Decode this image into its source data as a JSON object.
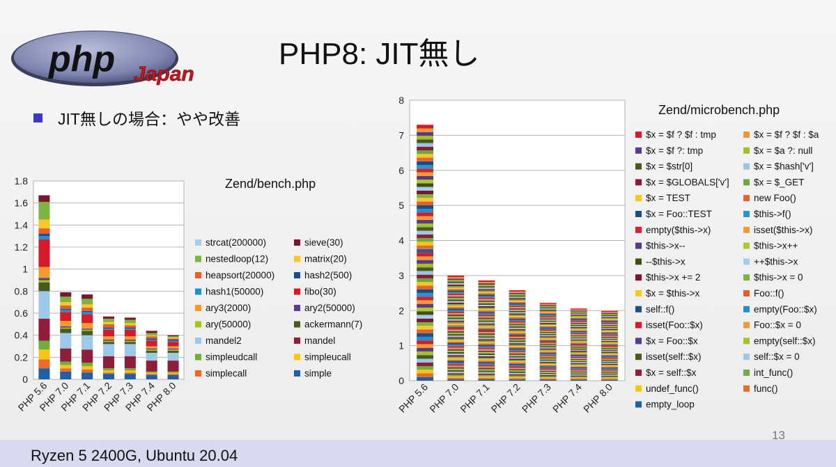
{
  "logo": {
    "text": "php",
    "subtext": "Japan"
  },
  "slide": {
    "title": "PHP8:  JIT無し",
    "bullet": "JIT無しの場合：やや改善",
    "footer": "Ryzen 5 2400G, Ubuntu 20.04",
    "page_number": "13"
  },
  "colors": {
    "bullet": "#3c3bbf",
    "footer_band": "#d9d9ef",
    "logo_oval": "#8a8fb5",
    "logo_red": "#c8141c"
  },
  "chart_data": [
    {
      "type": "bar",
      "stacked": true,
      "title": "Zend/bench.php",
      "categories": [
        "PHP 5.6",
        "PHP 7.0",
        "PHP 7.1",
        "PHP 7.2",
        "PHP 7.3",
        "PHP 7.4",
        "PHP 8.0"
      ],
      "totals": [
        1.67,
        0.78,
        0.73,
        0.57,
        0.55,
        0.45,
        0.41
      ],
      "ylim": [
        0,
        1.8
      ],
      "yticks": [
        "0",
        "0.2",
        "0.4",
        "0.6",
        "0.8",
        "1",
        "1.2",
        "1.4",
        "1.6",
        "1.8"
      ],
      "grid": true,
      "legend_position": "right",
      "series": [
        {
          "name": "simple",
          "color": "#1f5fa8",
          "values": [
            0.1,
            0.07,
            0.06,
            0.05,
            0.05,
            0.04,
            0.04
          ]
        },
        {
          "name": "simplecall",
          "color": "#ef6a25",
          "values": [
            0.08,
            0.03,
            0.03,
            0.01,
            0.01,
            0.01,
            0.01
          ]
        },
        {
          "name": "simpleucall",
          "color": "#f4c51a",
          "values": [
            0.09,
            0.03,
            0.03,
            0.02,
            0.02,
            0.01,
            0.01
          ]
        },
        {
          "name": "simpleudcall",
          "color": "#6fae3e",
          "values": [
            0.08,
            0.03,
            0.03,
            0.02,
            0.02,
            0.01,
            0.01
          ]
        },
        {
          "name": "mandel",
          "color": "#8f1e3a",
          "values": [
            0.2,
            0.12,
            0.12,
            0.11,
            0.11,
            0.1,
            0.1
          ]
        },
        {
          "name": "mandel2",
          "color": "#9cc8ea",
          "values": [
            0.25,
            0.14,
            0.13,
            0.11,
            0.11,
            0.07,
            0.07
          ]
        },
        {
          "name": "ackermann(7)",
          "color": "#4a5a1f",
          "values": [
            0.08,
            0.04,
            0.04,
            0.02,
            0.02,
            0.02,
            0.02
          ]
        },
        {
          "name": "ary(50000)",
          "color": "#a6c21c",
          "values": [
            0.02,
            0.01,
            0.01,
            0.01,
            0.01,
            0.01,
            0.01
          ]
        },
        {
          "name": "ary2(50000)",
          "color": "#5b3c8c",
          "values": [
            0.02,
            0.01,
            0.01,
            0.01,
            0.01,
            0.01,
            0.01
          ]
        },
        {
          "name": "ary3(2000)",
          "color": "#f29a2e",
          "values": [
            0.1,
            0.05,
            0.05,
            0.03,
            0.03,
            0.02,
            0.02
          ]
        },
        {
          "name": "fibo(30)",
          "color": "#d71a2b",
          "values": [
            0.25,
            0.08,
            0.08,
            0.06,
            0.06,
            0.05,
            0.04
          ]
        },
        {
          "name": "hash1(50000)",
          "color": "#1e8fcf",
          "values": [
            0.03,
            0.02,
            0.02,
            0.01,
            0.01,
            0.01,
            0.01
          ]
        },
        {
          "name": "hash2(500)",
          "color": "#1c4f8a",
          "values": [
            0.02,
            0.01,
            0.01,
            0.01,
            0.01,
            0.01,
            0.01
          ]
        },
        {
          "name": "heapsort(20000)",
          "color": "#ea5d24",
          "values": [
            0.05,
            0.03,
            0.03,
            0.03,
            0.02,
            0.02,
            0.01
          ]
        },
        {
          "name": "matrix(20)",
          "color": "#f5c92c",
          "values": [
            0.08,
            0.03,
            0.03,
            0.02,
            0.02,
            0.01,
            0.01
          ]
        },
        {
          "name": "nestedloop(12)",
          "color": "#7db342",
          "values": [
            0.16,
            0.05,
            0.05,
            0.03,
            0.03,
            0.02,
            0.01
          ]
        },
        {
          "name": "sieve(30)",
          "color": "#7a1630",
          "values": [
            0.06,
            0.04,
            0.04,
            0.02,
            0.02,
            0.02,
            0.01
          ]
        },
        {
          "name": "strcat(200000)",
          "color": "#a4cdf0",
          "values": [
            0.0,
            0.0,
            0.0,
            0.0,
            0.0,
            0.0,
            0.0
          ]
        }
      ],
      "legend": [
        "strcat(200000)",
        "sieve(30)",
        "nestedloop(12)",
        "matrix(20)",
        "heapsort(20000)",
        "hash2(500)",
        "hash1(50000)",
        "fibo(30)",
        "ary3(2000)",
        "ary2(50000)",
        "ary(50000)",
        "ackermann(7)",
        "mandel2",
        "mandel",
        "simpleudcall",
        "simpleucall",
        "simplecall",
        "simple"
      ]
    },
    {
      "type": "bar",
      "stacked": true,
      "title": "Zend/microbench.php",
      "categories": [
        "PHP 5.6",
        "PHP 7.0",
        "PHP 7.1",
        "PHP 7.2",
        "PHP 7.3",
        "PHP 7.4",
        "PHP 8.0"
      ],
      "totals": [
        7.3,
        3.0,
        2.86,
        2.58,
        2.22,
        2.06,
        1.99
      ],
      "ylim": [
        0,
        8
      ],
      "yticks": [
        "0",
        "1",
        "2",
        "3",
        "4",
        "5",
        "6",
        "7",
        "8"
      ],
      "grid": true,
      "legend_position": "right",
      "series": [
        {
          "name": "empty_loop",
          "color": "#1f5fa8"
        },
        {
          "name": "func()",
          "color": "#ef6a25"
        },
        {
          "name": "undef_func()",
          "color": "#f4c51a"
        },
        {
          "name": "int_func()",
          "color": "#6fae3e"
        },
        {
          "name": "$x = self::$x",
          "color": "#8f1e3a"
        },
        {
          "name": "self::$x = 0",
          "color": "#9cc8ea"
        },
        {
          "name": "isset(self::$x)",
          "color": "#4a5a1f"
        },
        {
          "name": "empty(self::$x)",
          "color": "#a6c21c"
        },
        {
          "name": "$x = Foo::$x",
          "color": "#5b3c8c"
        },
        {
          "name": "Foo::$x = 0",
          "color": "#f29a2e"
        },
        {
          "name": "isset(Foo::$x)",
          "color": "#d71a2b"
        },
        {
          "name": "empty(Foo::$x)",
          "color": "#1e8fcf"
        },
        {
          "name": "self::f()",
          "color": "#1c4f8a"
        },
        {
          "name": "Foo::f()",
          "color": "#ea5d24"
        },
        {
          "name": "$x = $this->x",
          "color": "#f5c92c"
        },
        {
          "name": "$this->x = 0",
          "color": "#7db342"
        },
        {
          "name": "$this->x += 2",
          "color": "#7a1630"
        },
        {
          "name": "++$this->x",
          "color": "#a4cdf0"
        },
        {
          "name": "--$this->x",
          "color": "#3f4f1a"
        },
        {
          "name": "$this->x++",
          "color": "#b3c72a"
        },
        {
          "name": "$this->x--",
          "color": "#5a3a87"
        },
        {
          "name": "isset($this->x)",
          "color": "#f39a30"
        },
        {
          "name": "empty($this->x)",
          "color": "#d4202f"
        },
        {
          "name": "$this->f()",
          "color": "#2395d3"
        },
        {
          "name": "$x = Foo::TEST",
          "color": "#1a4c86"
        },
        {
          "name": "new Foo()",
          "color": "#ec6127"
        },
        {
          "name": "$x = TEST",
          "color": "#f3c824"
        },
        {
          "name": "$x = $_GET",
          "color": "#68a83c"
        },
        {
          "name": "$x = $GLOBALS['v']",
          "color": "#8a1b36"
        },
        {
          "name": "$x = $hash['v']",
          "color": "#98c4e9"
        },
        {
          "name": "$x = $str[0]",
          "color": "#48581e"
        },
        {
          "name": "$x = $a ?: null",
          "color": "#a3bf22"
        },
        {
          "name": "$x = $f ?: tmp",
          "color": "#58398a"
        },
        {
          "name": "$x = $f ? $f : $a",
          "color": "#f0982c"
        },
        {
          "name": "$x = $f ? $f : tmp",
          "color": "#d41c2c"
        }
      ],
      "legend": [
        "$x = $f ? $f : tmp",
        "$x = $f ? $f : $a",
        "$x = $f ?: tmp",
        "$x = $a ?: null",
        "$x = $str[0]",
        "$x = $hash['v']",
        "$x = $GLOBALS['v']",
        "$x = $_GET",
        "$x = TEST",
        "new Foo()",
        "$x = Foo::TEST",
        "$this->f()",
        "empty($this->x)",
        "isset($this->x)",
        "$this->x--",
        "$this->x++",
        "--$this->x",
        "++$this->x",
        "$this->x += 2",
        "$this->x = 0",
        "$x = $this->x",
        "Foo::f()",
        "self::f()",
        "empty(Foo::$x)",
        "isset(Foo::$x)",
        "Foo::$x = 0",
        "$x = Foo::$x",
        "empty(self::$x)",
        "isset(self::$x)",
        "self::$x = 0",
        "$x = self::$x",
        "int_func()",
        "undef_func()",
        "func()",
        "empty_loop"
      ]
    }
  ]
}
